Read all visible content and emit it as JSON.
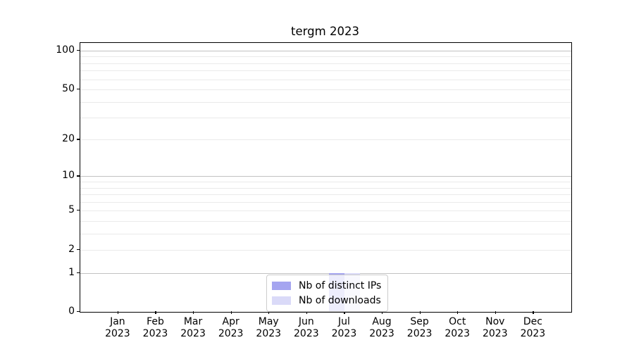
{
  "figure_title": "tergm 2023",
  "chart_data": {
    "type": "bar",
    "title": "tergm 2023",
    "categories": [
      "Jan",
      "Feb",
      "Mar",
      "Apr",
      "May",
      "Jun",
      "Jul",
      "Aug",
      "Sep",
      "Oct",
      "Nov",
      "Dec"
    ],
    "year_label": "2023",
    "series": [
      {
        "name": "Nb of distinct IPs",
        "color": "#a5a5f0",
        "values": [
          0,
          0,
          0,
          0,
          0,
          0,
          1,
          0,
          0,
          0,
          0,
          0
        ]
      },
      {
        "name": "Nb of downloads",
        "color": "#dadaf8",
        "values": [
          0,
          0,
          0,
          0,
          0,
          0,
          1,
          0,
          0,
          0,
          0,
          0
        ]
      }
    ],
    "yscale": "log1p",
    "ylim": [
      0,
      115
    ],
    "yticks": [
      0,
      1,
      2,
      5,
      10,
      20,
      50,
      100
    ],
    "major_gridlines": [
      1,
      10,
      100
    ],
    "minor_gridlines": [
      2,
      3,
      4,
      5,
      6,
      7,
      8,
      9,
      20,
      30,
      40,
      50,
      60,
      70,
      80,
      90
    ],
    "grid": true,
    "legend_position": "lower center",
    "colors": {
      "axis": "#000000",
      "major_grid": "#c2c2c2",
      "minor_grid": "#eaeaea",
      "text": "#000000",
      "legend_border": "#cccccc",
      "background": "#ffffff"
    }
  }
}
